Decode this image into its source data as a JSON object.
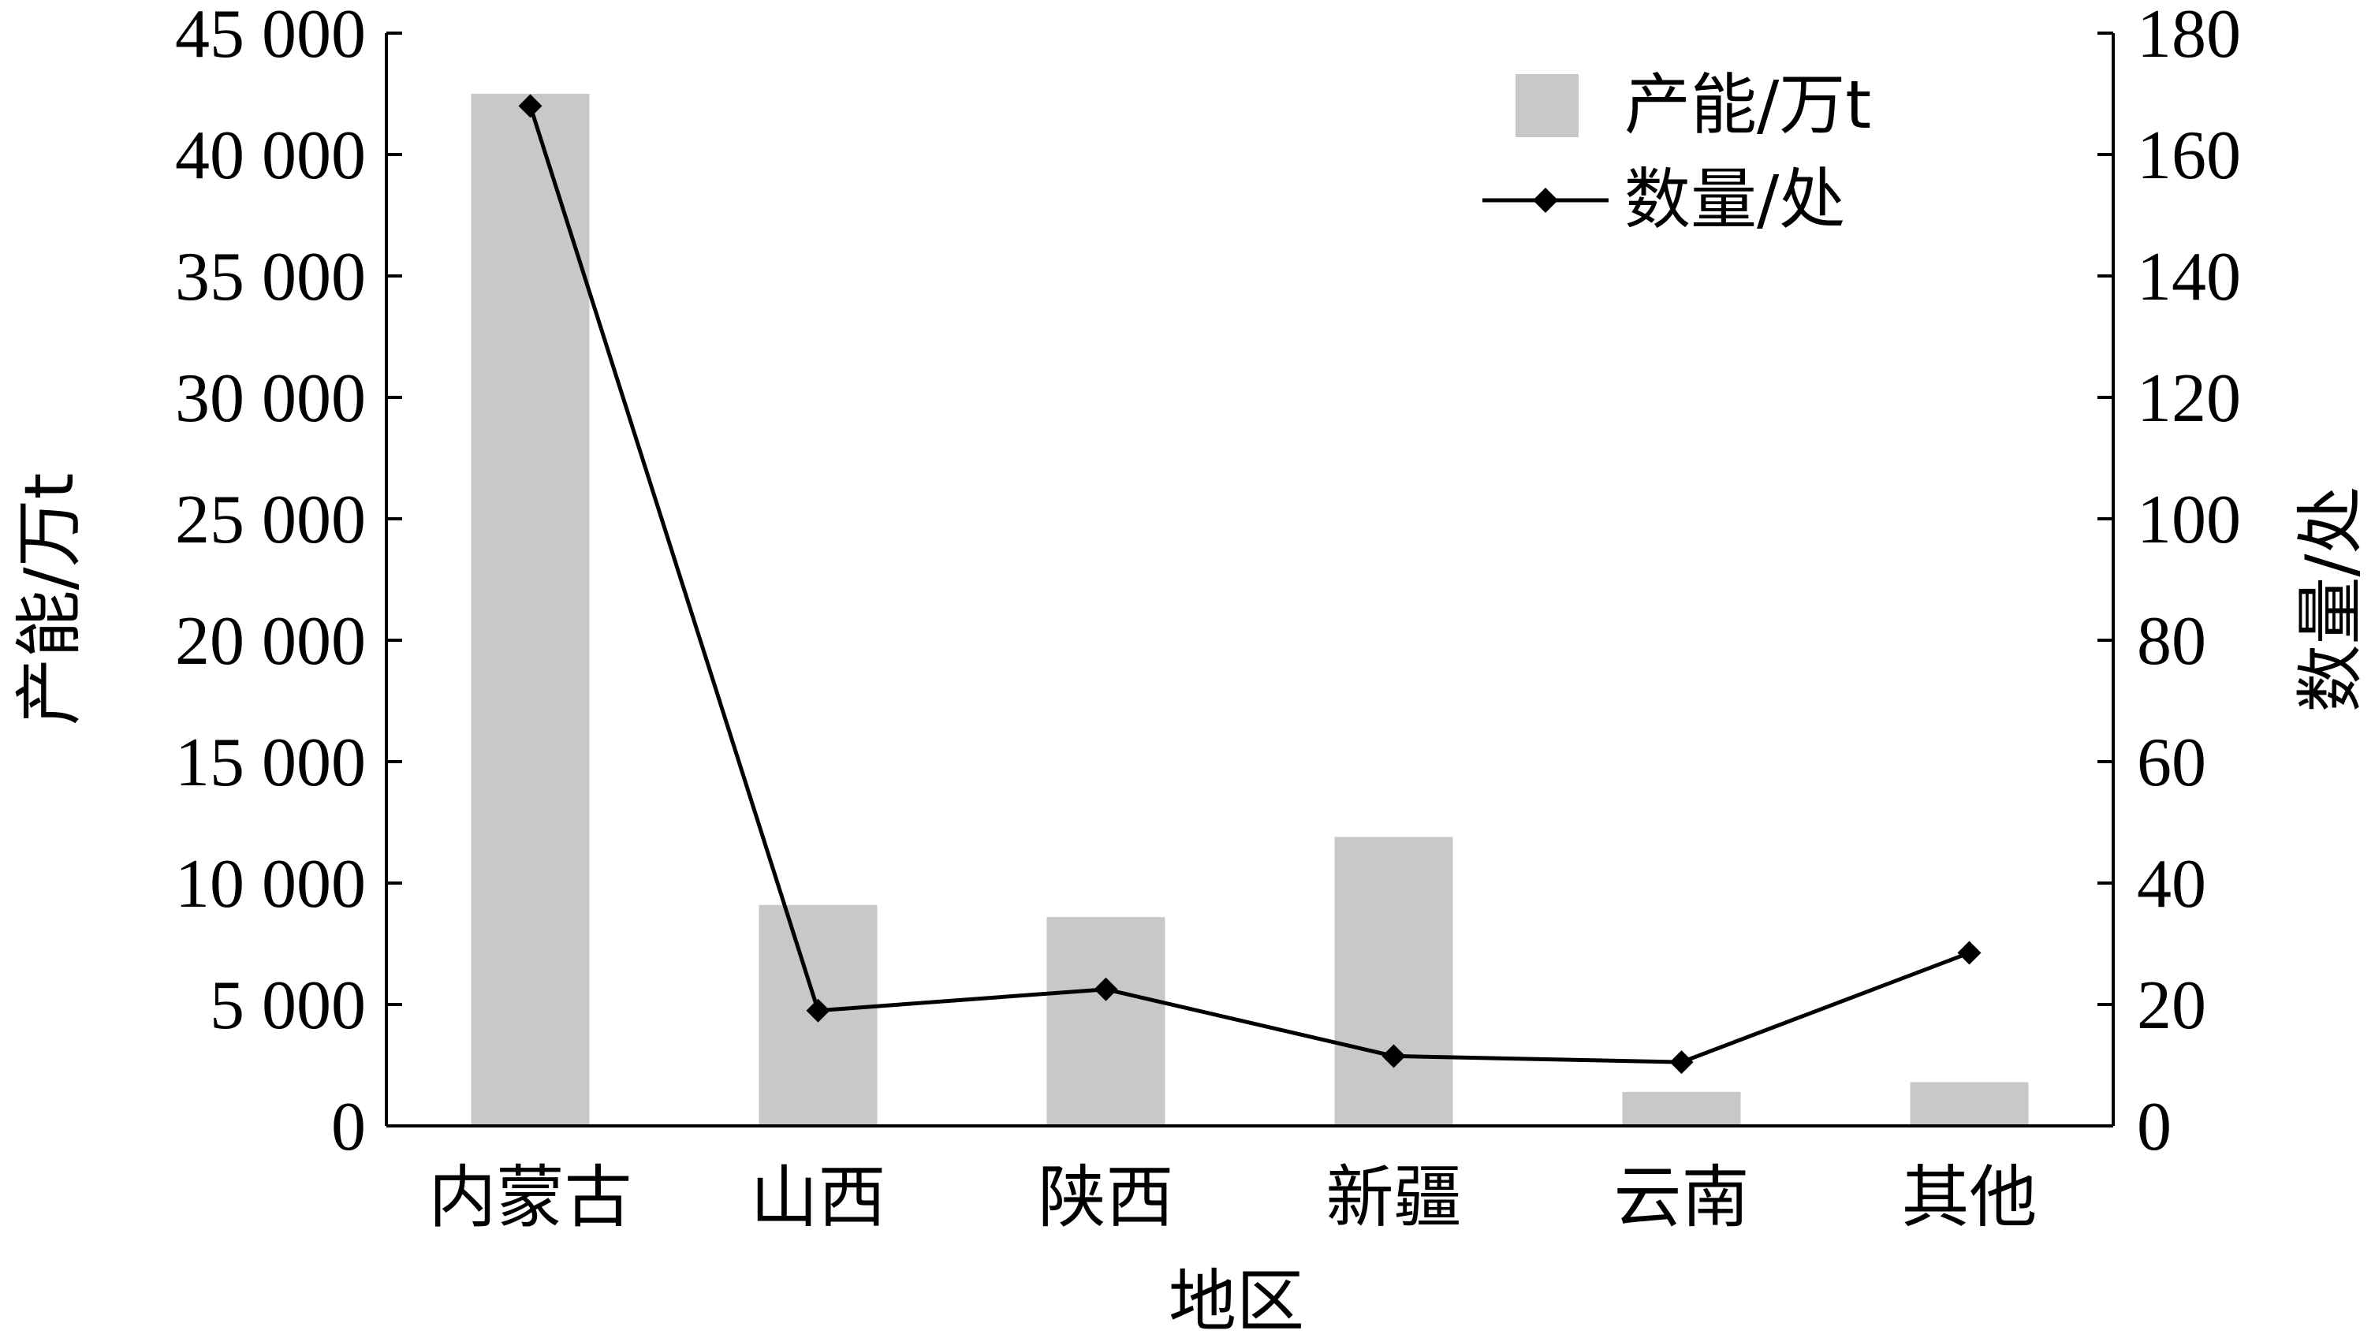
{
  "chart_data": {
    "type": "bar",
    "categories": [
      "内蒙古",
      "山西",
      "陕西",
      "新疆",
      "云南",
      "其他"
    ],
    "xlabel": "地区",
    "ylabel": "产能/万t",
    "y2label": "数量/处",
    "ylim": [
      0,
      45000
    ],
    "y2lim": [
      0,
      180
    ],
    "yticks": [
      0,
      5000,
      10000,
      15000,
      20000,
      25000,
      30000,
      35000,
      40000,
      45000
    ],
    "yticklabels": [
      "0",
      "5 000",
      "10 000",
      "15 000",
      "20 000",
      "25 000",
      "30 000",
      "35 000",
      "40 000",
      "45 000"
    ],
    "y2ticks": [
      0,
      20,
      40,
      60,
      80,
      100,
      120,
      140,
      160,
      180
    ],
    "y2ticklabels": [
      "0",
      "20",
      "40",
      "60",
      "80",
      "100",
      "120",
      "140",
      "160",
      "180"
    ],
    "series": [
      {
        "name": "产能/万t",
        "type": "bar",
        "axis": "left",
        "color": "#c8c8c8",
        "values": [
          42500,
          9100,
          8600,
          11900,
          1400,
          1800
        ]
      },
      {
        "name": "数量/处",
        "type": "line",
        "axis": "right",
        "color": "#000000",
        "marker": "diamond",
        "values": [
          168,
          19,
          22.5,
          11.5,
          10.5,
          28.5
        ]
      }
    ],
    "legend_position": "top-right",
    "grid": false
  }
}
